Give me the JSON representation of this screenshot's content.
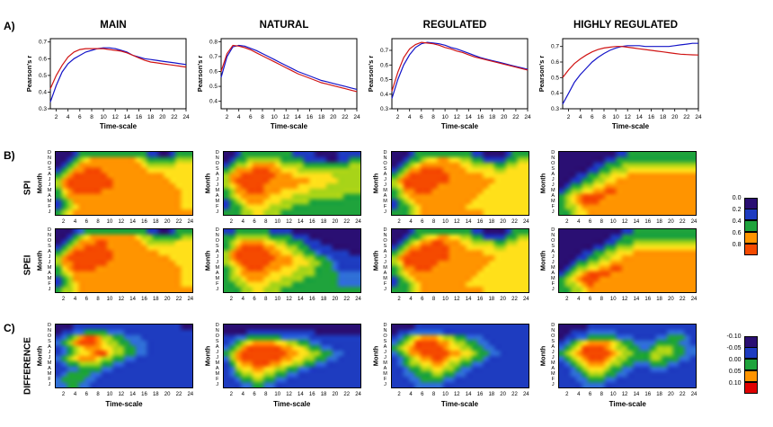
{
  "months_top_to_bottom": [
    "D",
    "N",
    "O",
    "S",
    "A",
    "J",
    "J",
    "M",
    "A",
    "M",
    "F",
    "J"
  ],
  "timescale_ticks": [
    2,
    4,
    6,
    8,
    10,
    12,
    14,
    16,
    18,
    20,
    22,
    24
  ],
  "heatmap_palette": {
    "digit_colors": [
      "#1c0650",
      "#2a0f73",
      "#1e3cc0",
      "#2f6fd6",
      "#1fa33c",
      "#a8d418",
      "#ffe01a",
      "#ff9400",
      "#f54a00",
      "#e00000"
    ],
    "b_digit_value": "digit x 0.1 = Pearson r",
    "c_digit_value": "value = -0.125 + digit x 0.028"
  },
  "panel_a": {
    "label": "A)",
    "ylabel": "Pearson's r",
    "xlabel": "Time-scale",
    "xticks": [
      2,
      4,
      6,
      8,
      10,
      12,
      14,
      16,
      18,
      20,
      22,
      24
    ],
    "charts": [
      {
        "title": "MAIN",
        "ylim": [
          0.3,
          0.72
        ],
        "yticks": [
          0.3,
          0.4,
          0.5,
          0.6,
          0.7
        ],
        "series": [
          {
            "name": "blue-line",
            "color": "#1414c8",
            "values": [
              0.34,
              0.44,
              0.52,
              0.57,
              0.6,
              0.62,
              0.64,
              0.65,
              0.66,
              0.665,
              0.665,
              0.66,
              0.65,
              0.64,
              0.62,
              0.61,
              0.6,
              0.595,
              0.59,
              0.585,
              0.58,
              0.575,
              0.57,
              0.565
            ]
          },
          {
            "name": "red-line",
            "color": "#d01414",
            "values": [
              0.42,
              0.5,
              0.56,
              0.61,
              0.64,
              0.655,
              0.66,
              0.66,
              0.66,
              0.66,
              0.655,
              0.65,
              0.645,
              0.635,
              0.62,
              0.605,
              0.59,
              0.58,
              0.575,
              0.57,
              0.565,
              0.56,
              0.555,
              0.55
            ]
          }
        ]
      },
      {
        "title": "NATURAL",
        "ylim": [
          0.35,
          0.82
        ],
        "yticks": [
          0.4,
          0.5,
          0.6,
          0.7,
          0.8
        ],
        "series": [
          {
            "name": "blue-line",
            "color": "#1414c8",
            "values": [
              0.56,
              0.7,
              0.765,
              0.775,
              0.77,
              0.755,
              0.74,
              0.72,
              0.7,
              0.68,
              0.66,
              0.64,
              0.62,
              0.6,
              0.585,
              0.57,
              0.555,
              0.54,
              0.53,
              0.52,
              0.51,
              0.5,
              0.49,
              0.48
            ]
          },
          {
            "name": "red-line",
            "color": "#d01414",
            "values": [
              0.6,
              0.72,
              0.775,
              0.77,
              0.76,
              0.745,
              0.725,
              0.705,
              0.685,
              0.665,
              0.645,
              0.625,
              0.605,
              0.585,
              0.57,
              0.555,
              0.54,
              0.525,
              0.515,
              0.505,
              0.495,
              0.485,
              0.475,
              0.465
            ]
          }
        ]
      },
      {
        "title": "REGULATED",
        "ylim": [
          0.3,
          0.78
        ],
        "yticks": [
          0.3,
          0.4,
          0.5,
          0.6,
          0.7
        ],
        "series": [
          {
            "name": "blue-line",
            "color": "#1414c8",
            "values": [
              0.37,
              0.5,
              0.6,
              0.67,
              0.72,
              0.745,
              0.755,
              0.75,
              0.745,
              0.735,
              0.72,
              0.71,
              0.695,
              0.68,
              0.665,
              0.65,
              0.64,
              0.63,
              0.62,
              0.61,
              0.6,
              0.59,
              0.58,
              0.57
            ]
          },
          {
            "name": "red-line",
            "color": "#d01414",
            "values": [
              0.42,
              0.55,
              0.65,
              0.71,
              0.74,
              0.755,
              0.75,
              0.745,
              0.735,
              0.72,
              0.71,
              0.695,
              0.685,
              0.67,
              0.655,
              0.645,
              0.635,
              0.625,
              0.615,
              0.605,
              0.595,
              0.585,
              0.575,
              0.565
            ]
          }
        ]
      },
      {
        "title": "HIGHLY REGULATED",
        "ylim": [
          0.3,
          0.75
        ],
        "yticks": [
          0.3,
          0.4,
          0.5,
          0.6,
          0.7
        ],
        "series": [
          {
            "name": "blue-line",
            "color": "#1414c8",
            "values": [
              0.33,
              0.4,
              0.47,
              0.52,
              0.56,
              0.6,
              0.63,
              0.655,
              0.675,
              0.69,
              0.7,
              0.705,
              0.705,
              0.705,
              0.7,
              0.7,
              0.7,
              0.7,
              0.7,
              0.705,
              0.71,
              0.715,
              0.72,
              0.72
            ]
          },
          {
            "name": "red-line",
            "color": "#d01414",
            "values": [
              0.5,
              0.55,
              0.59,
              0.62,
              0.645,
              0.665,
              0.68,
              0.69,
              0.695,
              0.7,
              0.7,
              0.695,
              0.69,
              0.685,
              0.68,
              0.675,
              0.67,
              0.665,
              0.66,
              0.655,
              0.65,
              0.648,
              0.646,
              0.645
            ]
          }
        ]
      }
    ]
  },
  "panel_b": {
    "label": "B)",
    "ylabel": "Month",
    "colorbar": {
      "labels": [
        "0.0",
        "0.2",
        "0.4",
        "0.6",
        "0.8"
      ],
      "colors": [
        "#2a0f73",
        "#1e3cc0",
        "#1fa33c",
        "#ff9400",
        "#f54a00"
      ]
    },
    "rows": [
      {
        "row_label": "SPI",
        "maps": [
          {
            "column": "MAIN",
            "grid": [
              "111244444444444422112444",
              "112456777777776544444555",
              "124577777777777655555666",
              "245778887777777766666666",
              "457888888777777777766666",
              "578888888877777777776666",
              "578888888877777777777666",
              "467888887777777777777766",
              "457777777777777777777766",
              "245777777777777777777766",
              "245677777777777777777766",
              "456777777777777777777777"
            ]
          },
          {
            "column": "NATURAL",
            "grid": [
              "112444444444222211112222",
              "124455555544442222112244",
              "245567777655554444444455",
              "457778887766655555555555",
              "577888888777666666655555",
              "578888887777777666665555",
              "567888877777766666555555",
              "457788877766666555555555",
              "456777776666555555555444",
              "245677766655555444444444",
              "244566665555444444444444",
              "444556655544444444444444"
            ]
          },
          {
            "column": "REGULATED",
            "grid": [
              "111244444444442211112444",
              "112445667766554422224455",
              "124567777777665555445566",
              "245778888777766666556666",
              "457888888877777766666666",
              "578888888877777777666666",
              "568888887777777776666666",
              "457788877777777766666666",
              "456777777777777666666666",
              "245677777777776666666666",
              "244567777777766666666666",
              "444567777777777766666666"
            ]
          },
          {
            "column": "HIGHLY REGULATED",
            "grid": [
              "111111111122444444444444",
              "111111112244444444444444",
              "111111224445555555555555",
              "111112244555666666666666",
              "111224455666777777777777",
              "112244556677777777777777",
              "124455667777777777777777",
              "245566778877777777777777",
              "456788887777777777777777",
              "456788877777777777777777",
              "455677777777777777777777",
              "445667777777777777777777"
            ]
          }
        ]
      },
      {
        "row_label": "SPEI",
        "maps": [
          {
            "column": "MAIN",
            "grid": [
              "111234444444444422112444",
              "112456777777776554444455",
              "124577788777777655555666",
              "245778888777777766666666",
              "457888888877777777666666",
              "578888888877777777776666",
              "577888888777777777777666",
              "467888877777777777777766",
              "456777777777777777777766",
              "245777777777777777777766",
              "245677777777777777777766",
              "455677777777777777777777"
            ]
          },
          {
            "column": "NATURAL",
            "grid": [
              "224444442222111111111111",
              "445555554444222111111111",
              "456777766554442221111111",
              "457888877665544222211111",
              "578888887766554432222211",
              "578888888777665544322222",
              "567888887777666554432222",
              "456788877766655544432222",
              "456777776666555544443333",
              "455677766655554444443333",
              "445566665555444444443333",
              "444556655544444444444444"
            ]
          },
          {
            "column": "REGULATED",
            "grid": [
              "111244444444442211112444",
              "112445667766554422224455",
              "124567788777665555445566",
              "245778888877766666556666",
              "457888888877777766666666",
              "578888888877777777666666",
              "568888887777777776666666",
              "457788877777777766666666",
              "456777777777777666666666",
              "245677777777776666666666",
              "244567777777766666666666",
              "444567777777777766666666"
            ]
          },
          {
            "column": "HIGHLY REGULATED",
            "grid": [
              "111111111112244444444444",
              "111111111224444444444444",
              "111111112244455555555555",
              "111111224455566666666666",
              "111122445566677777777777",
              "111224455667777777777777",
              "112445566777777777777777",
              "124556677887777777777777",
              "245678888777777777777777",
              "456788877777777777777777",
              "455678777777777777777777",
              "445567777777777777777777"
            ]
          }
        ]
      }
    ]
  },
  "panel_c": {
    "label": "C)",
    "row_label": "DIFFERENCE",
    "ylabel": "Month",
    "xlabel": "Time-scale",
    "colorbar": {
      "labels": [
        "-0.10",
        "-0.05",
        "0.00",
        "0.05",
        "0.10"
      ],
      "colors": [
        "#2a0f73",
        "#1e3cc0",
        "#1fa33c",
        "#ff9400",
        "#e00000"
      ]
    },
    "maps": [
      {
        "column": "MAIN",
        "grid": [
          "111222222222222222222211",
          "122334444333222222222222",
          "234578875544333222222222",
          "345788876554433322222222",
          "234567776655443322222222",
          "234566788655443322222222",
          "345677765544332222222222",
          "234455554433222222222222",
          "223344443322222222222222",
          "234444332222222222222222",
          "344443322222222222222222",
          "334433222222222222222222"
        ]
      },
      {
        "column": "NATURAL",
        "grid": [
          "111111111111111111111111",
          "111122222222222211111111",
          "223344444433333222222222",
          "234567777665544332222222",
          "345788888877665443322222",
          "457888888887766554433222",
          "357888888877665544332222",
          "246778887766554433222222",
          "235667766554433222222222",
          "234556655443322222222222",
          "223445544332222222222222",
          "222334433222222222222222"
        ]
      },
      {
        "column": "REGULATED",
        "grid": [
          "111122222222222222222222",
          "122333333222222222222222",
          "234567776554433322222222",
          "345688887765544332222222",
          "456788888766554433222222",
          "345778888877665443322222",
          "234567788766554432222222",
          "234556677655443322222222",
          "223445566554332222222222",
          "223344455443322222222222",
          "222334444332222222222222",
          "222233333222222222222222"
        ]
      },
      {
        "column": "HIGHLY REGULATED",
        "grid": [
          "111112222222222222222222",
          "112223333322222222233322",
          "122334444433322223344432",
          "234567777654433334444332",
          "345688887655443345554433",
          "456788888765544455554433",
          "345678887655444455444332",
          "234567776554433344433222",
          "223456665443322233322222",
          "223345554433222222222222",
          "222334443322222222222222",
          "222233332222222222222222"
        ]
      }
    ]
  },
  "chart_data": {
    "note": "Panel A: line charts of Pearson's r vs time-scale (months 1-24), blue and red series per catchment group. Panels B/C: heatmaps encoded in panel_b/panel_c grids, rows are months D(top) to J(bottom), columns time-scales 1-24, digits map to values via heatmap_palette.",
    "type": "line"
  }
}
